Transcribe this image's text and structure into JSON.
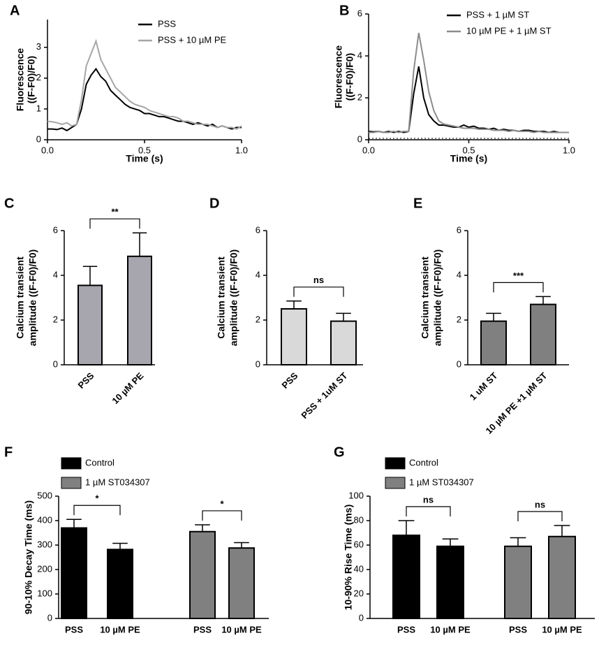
{
  "chart_data": [
    {
      "type": "line",
      "panel": "A",
      "ylabel": [
        "Fluorescence",
        "((F-F0)/F0)"
      ],
      "xlabel": "Time (s)",
      "x": [
        0,
        0.025,
        0.05,
        0.075,
        0.1,
        0.125,
        0.15,
        0.175,
        0.2,
        0.225,
        0.25,
        0.275,
        0.3,
        0.325,
        0.35,
        0.375,
        0.4,
        0.425,
        0.45,
        0.475,
        0.5,
        0.525,
        0.55,
        0.575,
        0.6,
        0.625,
        0.65,
        0.675,
        0.7,
        0.725,
        0.75,
        0.775,
        0.8,
        0.825,
        0.85,
        0.875,
        0.9,
        0.925,
        0.95,
        0.975,
        1
      ],
      "series": [
        {
          "name": "PSS",
          "color": "#000000",
          "values": [
            0.35,
            0.35,
            0.33,
            0.38,
            0.3,
            0.4,
            0.5,
            1.0,
            1.8,
            2.1,
            2.3,
            2.05,
            1.9,
            1.6,
            1.45,
            1.3,
            1.15,
            1.05,
            1.0,
            0.95,
            0.85,
            0.85,
            0.8,
            0.75,
            0.75,
            0.7,
            0.65,
            0.6,
            0.6,
            0.55,
            0.5,
            0.55,
            0.5,
            0.45,
            0.5,
            0.4,
            0.45,
            0.4,
            0.35,
            0.4,
            0.4
          ]
        },
        {
          "name": "PSS + 10 µM PE",
          "color": "#a6a6a6",
          "values": [
            0.6,
            0.58,
            0.55,
            0.5,
            0.55,
            0.45,
            0.5,
            1.3,
            2.4,
            2.8,
            3.2,
            2.6,
            2.3,
            2.0,
            1.7,
            1.55,
            1.4,
            1.25,
            1.15,
            1.1,
            1.05,
            0.95,
            0.9,
            0.85,
            0.8,
            0.75,
            0.75,
            0.7,
            0.6,
            0.6,
            0.55,
            0.5,
            0.5,
            0.5,
            0.45,
            0.4,
            0.45,
            0.4,
            0.4,
            0.35,
            0.45
          ]
        }
      ],
      "xlim": [
        0,
        1
      ],
      "xticks": [
        {
          "value": 0,
          "label": "0.0"
        },
        0.5,
        {
          "value": 1,
          "label": "1.0"
        }
      ],
      "ylim": [
        0,
        3.9
      ],
      "yticks": [
        0,
        1,
        2,
        3
      ]
    },
    {
      "type": "line",
      "panel": "B",
      "ylabel": [
        "Fluorescence",
        "((F-F0)/F0)"
      ],
      "xlabel": "Time (s)",
      "x": [
        0,
        0.025,
        0.05,
        0.075,
        0.1,
        0.125,
        0.15,
        0.175,
        0.2,
        0.225,
        0.25,
        0.275,
        0.3,
        0.325,
        0.35,
        0.375,
        0.4,
        0.425,
        0.45,
        0.475,
        0.5,
        0.525,
        0.55,
        0.575,
        0.6,
        0.625,
        0.65,
        0.675,
        0.7,
        0.725,
        0.75,
        0.775,
        0.8,
        0.825,
        0.85,
        0.875,
        0.9,
        0.925,
        0.95,
        0.975,
        1
      ],
      "series": [
        {
          "name": "PSS + 1 µM ST",
          "color": "#000000",
          "values": [
            0.4,
            0.38,
            0.4,
            0.35,
            0.4,
            0.35,
            0.4,
            0.35,
            0.4,
            2.2,
            3.5,
            2.0,
            1.2,
            0.9,
            0.7,
            0.7,
            0.65,
            0.6,
            0.6,
            0.7,
            0.6,
            0.65,
            0.55,
            0.55,
            0.5,
            0.55,
            0.45,
            0.5,
            0.45,
            0.45,
            0.4,
            0.45,
            0.45,
            0.4,
            0.4,
            0.4,
            0.35,
            0.4,
            0.35,
            0.35,
            0.35
          ]
        },
        {
          "name": "10 µM PE + 1 µM ST",
          "color": "#8c8c8c",
          "values": [
            0.35,
            0.35,
            0.4,
            0.35,
            0.35,
            0.4,
            0.35,
            0.4,
            0.4,
            3.3,
            5.1,
            3.8,
            2.3,
            1.4,
            0.9,
            0.75,
            0.7,
            0.65,
            0.6,
            0.55,
            0.55,
            0.55,
            0.5,
            0.5,
            0.5,
            0.45,
            0.45,
            0.45,
            0.4,
            0.45,
            0.4,
            0.4,
            0.4,
            0.35,
            0.4,
            0.35,
            0.35,
            0.35,
            0.35,
            0.35,
            0.35
          ]
        }
      ],
      "xlim": [
        0,
        1
      ],
      "xticks": [
        {
          "value": 0,
          "label": "0.0"
        },
        0.5,
        {
          "value": 1,
          "label": "1.0"
        }
      ],
      "ylim": [
        0,
        6
      ],
      "yticks": [
        0,
        2,
        4,
        6
      ]
    },
    {
      "type": "bar",
      "panel": "C",
      "ylabel": [
        "Calcium transient",
        "amplitude ((F-F0)/F0)"
      ],
      "categories": [
        "PSS",
        "10 µM PE"
      ],
      "values": [
        3.55,
        4.85
      ],
      "errors": [
        0.85,
        1.05
      ],
      "color": "#a7a6ae",
      "ylim": [
        0,
        6
      ],
      "yticks": [
        0,
        2,
        4,
        6
      ],
      "significance": [
        "**"
      ]
    },
    {
      "type": "bar",
      "panel": "D",
      "ylabel": [
        "Calcium transient",
        "amplitude ((F-F0)/F0)"
      ],
      "categories": [
        "PSS",
        "PSS + 1uM ST"
      ],
      "values": [
        2.5,
        1.95
      ],
      "errors": [
        0.35,
        0.35
      ],
      "color": "#d9d9d9",
      "ylim": [
        0,
        6
      ],
      "yticks": [
        0,
        2,
        4,
        6
      ],
      "significance": [
        "ns"
      ]
    },
    {
      "type": "bar",
      "panel": "E",
      "ylabel": [
        "Calcium transient",
        "amplitude ((F-F0)/F0)"
      ],
      "categories": [
        "1 uM ST",
        "10 µM PE +1 µM ST"
      ],
      "values": [
        1.95,
        2.7
      ],
      "errors": [
        0.35,
        0.35
      ],
      "color": "#808080",
      "ylim": [
        0,
        6
      ],
      "yticks": [
        0,
        2,
        4,
        6
      ],
      "significance": [
        "***"
      ]
    },
    {
      "type": "bar",
      "panel": "F",
      "ylabel": [
        "90-10% Decay Time (ms)"
      ],
      "categories": [
        "PSS",
        "10 µM PE",
        "PSS",
        "10 µM PE"
      ],
      "series": [
        {
          "name": "Control",
          "color": "#000000",
          "values": [
            370,
            282,
            null,
            null
          ],
          "errors": [
            35,
            25,
            null,
            null
          ]
        },
        {
          "name": "1 µM ST034307",
          "color": "#808080",
          "values": [
            null,
            null,
            355,
            288
          ],
          "errors": [
            null,
            null,
            28,
            22
          ]
        }
      ],
      "ylim": [
        0,
        500
      ],
      "yticks": [
        0,
        100,
        200,
        300,
        400,
        500
      ],
      "significance": [
        "*",
        "*"
      ]
    },
    {
      "type": "bar",
      "panel": "G",
      "ylabel": [
        "10-90% Rise Time (ms)"
      ],
      "categories": [
        "PSS",
        "10 µM PE",
        "PSS",
        "10 µM PE"
      ],
      "series": [
        {
          "name": "Control",
          "color": "#000000",
          "values": [
            68,
            59,
            null,
            null
          ],
          "errors": [
            12,
            6,
            null,
            null
          ]
        },
        {
          "name": "1 µM ST034307",
          "color": "#808080",
          "values": [
            null,
            null,
            59,
            67
          ],
          "errors": [
            null,
            null,
            7,
            9
          ]
        }
      ],
      "ylim": [
        0,
        100
      ],
      "yticks": [
        0,
        20,
        40,
        60,
        80,
        100
      ],
      "significance": [
        "ns",
        "ns"
      ]
    }
  ]
}
